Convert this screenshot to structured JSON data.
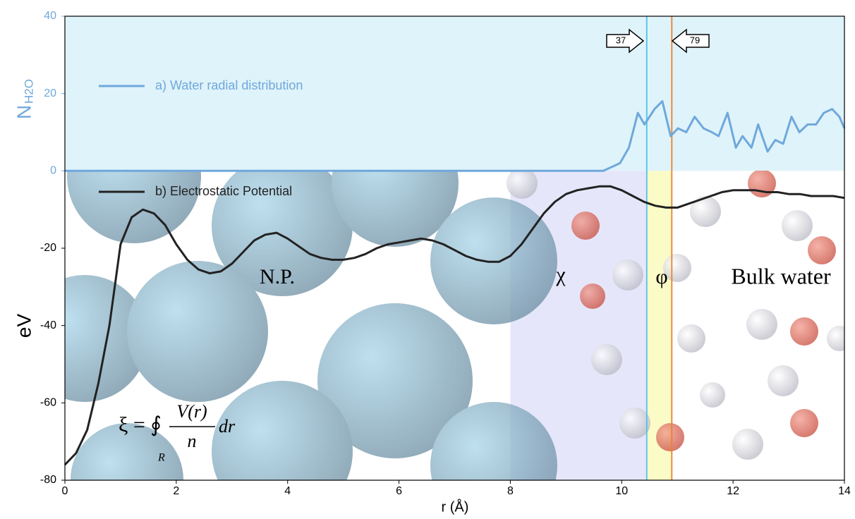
{
  "chart_data": {
    "type": "line",
    "x_label": "r (Å)",
    "y_label": "eV",
    "y_label_top": "N",
    "y_label_top_sub": "H2O",
    "xlim": [
      0,
      14
    ],
    "xticks": [
      0,
      2,
      4,
      6,
      8,
      10,
      12,
      14
    ],
    "ylim": [
      -80,
      40
    ],
    "yticks": [
      -80,
      -60,
      -40,
      -20,
      0,
      20,
      40
    ],
    "top_color": "#6fa8dc",
    "top_fill": "#dff3fa",
    "regions": [
      {
        "x": [
          8,
          10.45
        ],
        "color": "#e6e6fb"
      },
      {
        "x": [
          10.45,
          10.9
        ],
        "color": "#fbfbc8"
      }
    ],
    "vlines": [
      {
        "x": 10.45,
        "color": "#4fc3e8"
      },
      {
        "x": 10.9,
        "color": "#e8822f"
      }
    ],
    "arrows": [
      {
        "label": "37",
        "direction": "right"
      },
      {
        "label": "79",
        "direction": "left"
      }
    ],
    "region_labels": [
      "N.P.",
      "χ",
      "φ",
      "Bulk water"
    ],
    "formula": {
      "lhs": "ξ = ∮",
      "numerator": "V(r)",
      "denominator": "n",
      "tail": "dr",
      "subscript": "R"
    },
    "series": [
      {
        "name": "a) Water radial distribution",
        "color": "#6fa8dc",
        "x": [
          0,
          9.67,
          9.97,
          10.13,
          10.29,
          10.41,
          10.59,
          10.73,
          10.88,
          11.01,
          11.16,
          11.31,
          11.47,
          11.62,
          11.74,
          11.9,
          12.05,
          12.17,
          12.33,
          12.45,
          12.62,
          12.76,
          12.9,
          13.05,
          13.19,
          13.34,
          13.49,
          13.63,
          13.78,
          13.91,
          14
        ],
        "values": [
          0,
          0,
          2,
          6,
          15,
          12,
          16,
          18,
          9,
          11,
          10,
          14,
          11,
          10,
          9,
          15,
          6,
          9,
          6,
          12,
          5,
          8,
          7,
          14,
          10,
          12,
          12,
          15,
          16,
          14,
          11
        ]
      },
      {
        "name": "b) Electrostatic Potential",
        "color": "#222222",
        "x": [
          0,
          0.2,
          0.4,
          0.6,
          0.8,
          1.0,
          1.2,
          1.4,
          1.6,
          1.8,
          2.0,
          2.2,
          2.4,
          2.6,
          2.8,
          3.0,
          3.2,
          3.4,
          3.6,
          3.8,
          4.0,
          4.2,
          4.4,
          4.6,
          4.8,
          5.0,
          5.2,
          5.4,
          5.6,
          5.8,
          6.0,
          6.2,
          6.4,
          6.6,
          6.8,
          7.0,
          7.2,
          7.4,
          7.6,
          7.8,
          8.0,
          8.2,
          8.4,
          8.6,
          8.8,
          9.0,
          9.2,
          9.4,
          9.6,
          9.8,
          10.0,
          10.2,
          10.4,
          10.6,
          10.8,
          11.0,
          11.2,
          11.4,
          11.6,
          11.8,
          12.0,
          12.2,
          12.4,
          12.6,
          12.8,
          13.0,
          13.2,
          13.4,
          13.6,
          13.8,
          14.0
        ],
        "values": [
          -76,
          -73,
          -67,
          -55,
          -40,
          -19,
          -12,
          -10,
          -11,
          -14,
          -19,
          -23,
          -25.5,
          -26.5,
          -26,
          -24,
          -21,
          -18,
          -16.5,
          -16,
          -17.5,
          -19.5,
          -21.5,
          -22.5,
          -23,
          -23,
          -22.5,
          -21.5,
          -20,
          -19,
          -18.5,
          -18,
          -17.5,
          -18,
          -19,
          -20.5,
          -22,
          -23,
          -23.5,
          -23.5,
          -22,
          -19,
          -15,
          -11,
          -8,
          -6,
          -5,
          -4.5,
          -4,
          -4,
          -5,
          -6.5,
          -8,
          -9,
          -9.5,
          -9.5,
          -8.5,
          -7.5,
          -6.5,
          -5.5,
          -5,
          -5,
          -5,
          -5.5,
          -5.5,
          -6,
          -6,
          -6.5,
          -6.5,
          -6.5,
          -7
        ]
      }
    ]
  }
}
